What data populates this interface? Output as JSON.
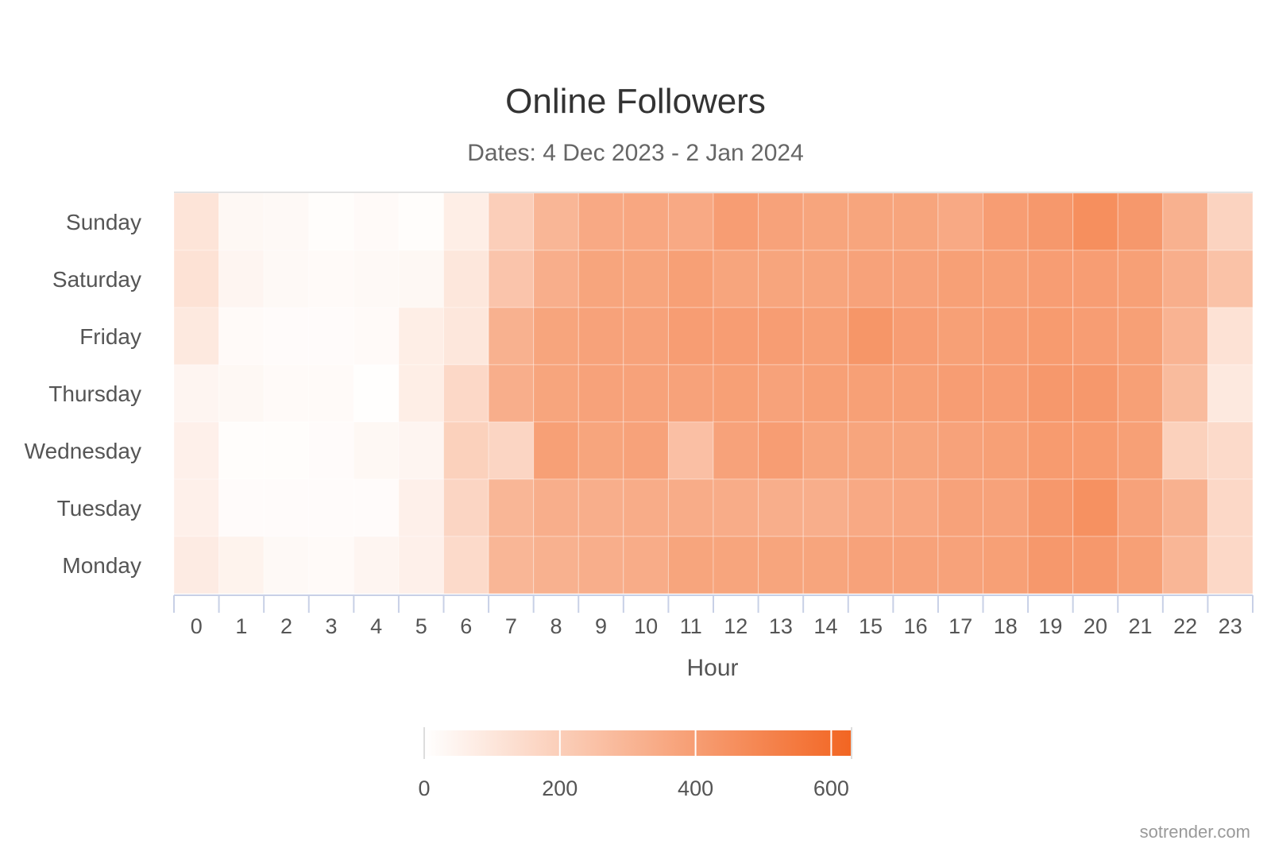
{
  "chart_data": {
    "type": "heatmap",
    "title": "Online Followers",
    "subtitle": "Dates: 4 Dec 2023 - 2 Jan 2024",
    "xlabel": "Hour",
    "ylabel": "",
    "x": [
      "0",
      "1",
      "2",
      "3",
      "4",
      "5",
      "6",
      "7",
      "8",
      "9",
      "10",
      "11",
      "12",
      "13",
      "14",
      "15",
      "16",
      "17",
      "18",
      "19",
      "20",
      "21",
      "22",
      "23"
    ],
    "y": [
      "Sunday",
      "Saturday",
      "Friday",
      "Thursday",
      "Wednesday",
      "Tuesday",
      "Monday"
    ],
    "values": [
      [
        110,
        30,
        25,
        10,
        20,
        10,
        70,
        200,
        300,
        350,
        360,
        350,
        400,
        380,
        370,
        370,
        370,
        350,
        400,
        420,
        460,
        420,
        320,
        180
      ],
      [
        120,
        40,
        25,
        20,
        25,
        30,
        100,
        240,
        330,
        370,
        370,
        390,
        370,
        370,
        370,
        380,
        380,
        390,
        390,
        400,
        400,
        390,
        330,
        250
      ],
      [
        90,
        20,
        15,
        15,
        20,
        70,
        100,
        320,
        370,
        380,
        380,
        400,
        400,
        400,
        390,
        430,
        400,
        390,
        400,
        410,
        400,
        390,
        310,
        120
      ],
      [
        40,
        30,
        20,
        20,
        5,
        70,
        160,
        330,
        370,
        380,
        380,
        380,
        390,
        380,
        390,
        390,
        390,
        400,
        400,
        420,
        420,
        390,
        280,
        90
      ],
      [
        60,
        10,
        10,
        15,
        30,
        40,
        190,
        170,
        390,
        370,
        380,
        260,
        380,
        400,
        370,
        370,
        370,
        380,
        390,
        410,
        410,
        390,
        190,
        150
      ],
      [
        60,
        15,
        15,
        15,
        15,
        60,
        170,
        300,
        330,
        330,
        340,
        340,
        340,
        330,
        330,
        350,
        360,
        380,
        380,
        420,
        450,
        380,
        320,
        160
      ],
      [
        80,
        50,
        25,
        20,
        40,
        60,
        150,
        300,
        320,
        330,
        340,
        370,
        370,
        370,
        370,
        380,
        380,
        380,
        390,
        420,
        420,
        390,
        300,
        160
      ]
    ],
    "colorscale": {
      "min": 0,
      "max": 630,
      "low_color": "#ffffff",
      "high_color": "#f26522"
    },
    "legend": {
      "position": "bottom",
      "ticks": [
        "0",
        "200",
        "400",
        "600"
      ]
    },
    "grid": false
  },
  "credit": "sotrender.com"
}
